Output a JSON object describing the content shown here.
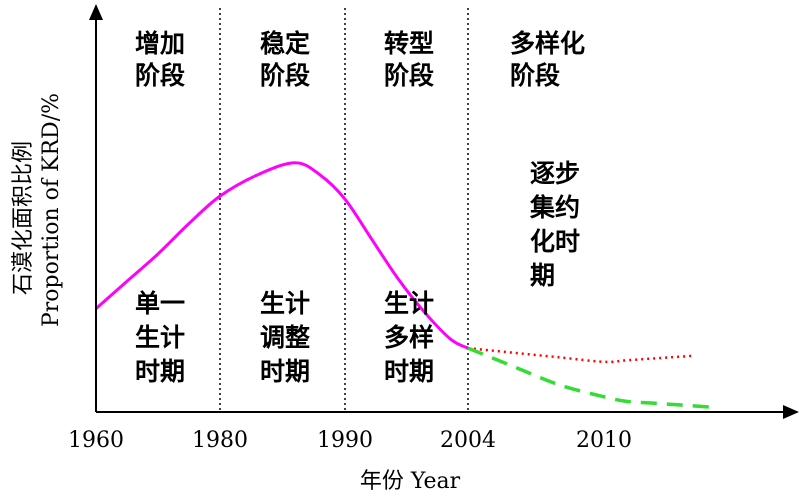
{
  "chart_data": {
    "type": "line",
    "xlabel": "年份 Year",
    "ylabel_cn": "石漠化面积比例",
    "ylabel_en": "Proportion of KRD/%",
    "x_ticks": [
      "1960",
      "1980",
      "1990",
      "2004",
      "2010"
    ],
    "x_tick_positions": [
      1960,
      1980,
      1990,
      2004,
      2010
    ],
    "phase_dividers": [
      1980,
      1990,
      2004
    ],
    "top_phases": [
      "增加\n阶段",
      "稳定\n阶段",
      "转型\n阶段",
      "多样化\n阶段"
    ],
    "lower_periods": [
      "单一\n生计\n时期",
      "生计\n调整\n时期",
      "生计\n多样\n时期",
      "逐步\n集约\n化时\n期"
    ],
    "ylim": [
      0,
      100
    ],
    "series": [
      {
        "style": "solid",
        "color": "#ff00ff",
        "x": [
          1960,
          1965,
          1970,
          1975,
          1980,
          1983,
          1986,
          1988,
          1990,
          1993,
          1996,
          1999,
          2002,
          2004
        ],
        "y": [
          34,
          43,
          52,
          62,
          71,
          78,
          82,
          78,
          70,
          57,
          44,
          33,
          24,
          21
        ]
      },
      {
        "style": "dotted",
        "color": "#ff0000",
        "x": [
          2004,
          2006,
          2008,
          2010,
          2012,
          2014,
          2016,
          2018
        ],
        "y": [
          21,
          19.5,
          18,
          16.5,
          17,
          17.5,
          18,
          18.5
        ]
      },
      {
        "style": "dashed",
        "color": "#33dd33",
        "x": [
          2004,
          2006,
          2008,
          2010,
          2012,
          2014,
          2016,
          2018,
          2020
        ],
        "y": [
          21,
          15,
          9,
          5,
          3.5,
          3,
          2.5,
          2,
          1.5
        ]
      }
    ]
  }
}
